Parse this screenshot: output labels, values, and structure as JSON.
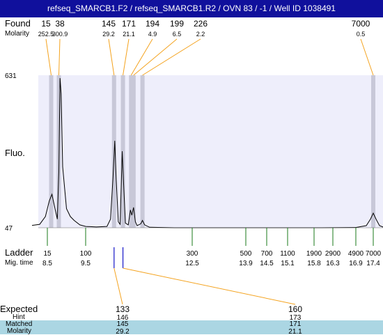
{
  "title": "refseq_SMARCB1.F2 / refseq_SMARCB1.R2 / OVN 83 / -1 / Well ID 1038491",
  "labels": {
    "found": "Found",
    "molarity": "Molarity",
    "fluo": "Fluo.",
    "ladder": "Ladder",
    "mig_time": "Mig. time",
    "expected": "Expected",
    "hint": "Hint",
    "matched": "Matched",
    "molarity_bottom": "Molarity"
  },
  "colors": {
    "title_bg": "#10109c",
    "plot_bg": "#eeeefb",
    "peak_band": "#c8c8d8",
    "callout_line": "#f4a31f",
    "ladder_tick": "#1a7a1a",
    "marker_tick": "#1414c8",
    "table_band": "#abd6e3",
    "trace": "#000000"
  },
  "chart_data": {
    "type": "line",
    "ylabel": "Fluo.",
    "ylim": [
      47,
      631
    ],
    "y_ticks": [
      "631",
      "47"
    ],
    "found_peaks": [
      {
        "size": "15",
        "molarity": "252.5",
        "mig_time": 8.6
      },
      {
        "size": "38",
        "molarity": "300.9",
        "mig_time": 8.8
      },
      {
        "size": "145",
        "molarity": "29.2",
        "mig_time": 10.3
      },
      {
        "size": "171",
        "molarity": "21.1",
        "mig_time": 10.55
      },
      {
        "size": "194",
        "molarity": "4.9",
        "mig_time": 10.78
      },
      {
        "size": "199",
        "molarity": "6.5",
        "mig_time": 10.85
      },
      {
        "size": "226",
        "molarity": "2.2",
        "mig_time": 11.1
      },
      {
        "size": "7000",
        "molarity": "0.5",
        "mig_time": 17.4
      }
    ],
    "ladder": [
      {
        "size": "15",
        "mig_time": "8.5"
      },
      {
        "size": "100",
        "mig_time": "9.5"
      },
      {
        "size": "300",
        "mig_time": "12.5"
      },
      {
        "size": "500",
        "mig_time": "13.9"
      },
      {
        "size": "700",
        "mig_time": "14.5"
      },
      {
        "size": "1100",
        "mig_time": "15.1"
      },
      {
        "size": "1900",
        "mig_time": "15.8"
      },
      {
        "size": "2900",
        "mig_time": "16.3"
      },
      {
        "size": "4900",
        "mig_time": "16.9"
      },
      {
        "size": "7000",
        "mig_time": "17.4"
      }
    ],
    "trace": [
      [
        8.1,
        56
      ],
      [
        8.3,
        60
      ],
      [
        8.45,
        90
      ],
      [
        8.55,
        150
      ],
      [
        8.62,
        175
      ],
      [
        8.7,
        120
      ],
      [
        8.76,
        80
      ],
      [
        8.8,
        260
      ],
      [
        8.83,
        620
      ],
      [
        8.86,
        560
      ],
      [
        8.9,
        280
      ],
      [
        9.0,
        120
      ],
      [
        9.1,
        90
      ],
      [
        9.2,
        75
      ],
      [
        9.35,
        58
      ],
      [
        9.5,
        52
      ],
      [
        9.8,
        50
      ],
      [
        10.1,
        52
      ],
      [
        10.2,
        80
      ],
      [
        10.27,
        240
      ],
      [
        10.32,
        380
      ],
      [
        10.36,
        230
      ],
      [
        10.42,
        70
      ],
      [
        10.47,
        60
      ],
      [
        10.5,
        200
      ],
      [
        10.53,
        340
      ],
      [
        10.57,
        210
      ],
      [
        10.62,
        65
      ],
      [
        10.7,
        58
      ],
      [
        10.76,
        115
      ],
      [
        10.8,
        95
      ],
      [
        10.85,
        125
      ],
      [
        10.9,
        70
      ],
      [
        10.95,
        55
      ],
      [
        11.05,
        62
      ],
      [
        11.1,
        75
      ],
      [
        11.16,
        58
      ],
      [
        11.3,
        49
      ],
      [
        12,
        47
      ],
      [
        14,
        47
      ],
      [
        16,
        47
      ],
      [
        16.9,
        48
      ],
      [
        17.2,
        55
      ],
      [
        17.32,
        80
      ],
      [
        17.4,
        103
      ],
      [
        17.48,
        80
      ],
      [
        17.58,
        55
      ],
      [
        17.7,
        49
      ],
      [
        17.85,
        47
      ]
    ],
    "peak_bands_mig_time": [
      8.6,
      8.8,
      10.3,
      10.55,
      10.78,
      10.85,
      11.1,
      17.4
    ]
  },
  "expected_table": [
    {
      "expected": "133",
      "hint": "146",
      "matched": "145",
      "molarity": "29.2",
      "marker_time": 10.3
    },
    {
      "expected": "160",
      "hint": "173",
      "matched": "171",
      "molarity": "21.1",
      "marker_time": 10.55
    }
  ]
}
